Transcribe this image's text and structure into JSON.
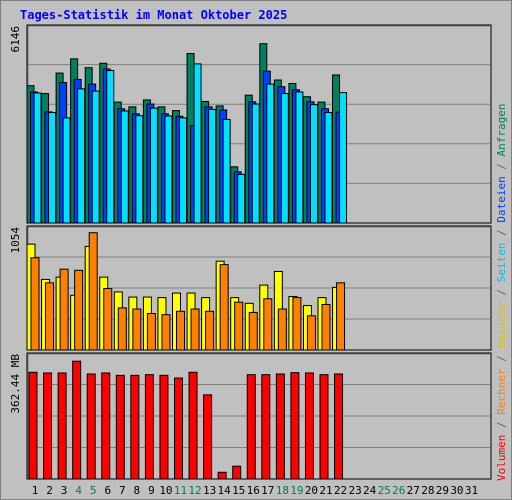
{
  "title": "Tages-Statistik im Monat Oktober 2025",
  "colors": {
    "anfragen": "#008060",
    "dateien": "#0040ff",
    "seiten": "#00e0ff",
    "besuche": "#ffff00",
    "rechner": "#ff8000",
    "volumen": "#ff0000",
    "weekend_label": "#008040",
    "text": "#000000"
  },
  "legend": [
    {
      "label": "Volumen",
      "color": "#ff0000"
    },
    {
      "label": "Rechner",
      "color": "#ff8000"
    },
    {
      "label": "Besuche",
      "color": "#e0c000"
    },
    {
      "label": "Seiten",
      "color": "#00c0e0"
    },
    {
      "label": "Dateien",
      "color": "#0040ff"
    },
    {
      "label": "Anfragen",
      "color": "#008060"
    }
  ],
  "legend_separator": " / ",
  "chart_data": [
    {
      "type": "bar",
      "name": "hits-files-pages",
      "max_label": "6146",
      "ylim": [
        0,
        6146
      ],
      "categories": [
        "1",
        "2",
        "3",
        "4",
        "5",
        "6",
        "7",
        "8",
        "9",
        "10",
        "11",
        "12",
        "13",
        "14",
        "15",
        "16",
        "17",
        "18",
        "19",
        "20",
        "21",
        "22",
        "23",
        "24",
        "25",
        "26",
        "27",
        "28",
        "29",
        "30",
        "31"
      ],
      "weekend_days": [
        4,
        5,
        11,
        12,
        18,
        19,
        25,
        26
      ],
      "series": [
        {
          "name": "Anfragen",
          "key": "anfragen",
          "values": [
            4350,
            4100,
            4750,
            5200,
            4920,
            5060,
            3830,
            3680,
            3900,
            3680,
            3560,
            5370,
            3850,
            3710,
            1780,
            4050,
            5680,
            4530,
            4420,
            4000,
            3830,
            4690,
            0,
            0,
            0,
            0,
            0,
            0,
            0,
            0,
            0
          ]
        },
        {
          "name": "Dateien",
          "key": "dateien",
          "values": [
            4150,
            3520,
            4450,
            4550,
            4400,
            4880,
            3620,
            3460,
            3770,
            3460,
            3380,
            3080,
            3680,
            3580,
            1620,
            3840,
            4810,
            4320,
            4220,
            3840,
            3620,
            3510,
            0,
            0,
            0,
            0,
            0,
            0,
            0,
            0,
            0
          ]
        },
        {
          "name": "Seiten",
          "key": "seiten",
          "values": [
            4120,
            3500,
            3330,
            4250,
            4180,
            4830,
            3550,
            3400,
            3640,
            3390,
            3330,
            5040,
            3600,
            3280,
            1540,
            3770,
            4400,
            4100,
            4150,
            3750,
            3500,
            4130,
            0,
            0,
            0,
            0,
            0,
            0,
            0,
            0,
            0
          ]
        }
      ]
    },
    {
      "type": "bar",
      "name": "visits-hosts",
      "max_label": "1054",
      "ylim": [
        0,
        1054
      ],
      "series": [
        {
          "name": "Besuche",
          "key": "besuche",
          "values": [
            930,
            620,
            640,
            480,
            910,
            640,
            510,
            465,
            465,
            460,
            500,
            500,
            460,
            780,
            460,
            410,
            570,
            690,
            470,
            390,
            460,
            550,
            0,
            0,
            0,
            0,
            0,
            0,
            0,
            0,
            0
          ]
        },
        {
          "name": "Rechner",
          "key": "rechner",
          "values": [
            810,
            590,
            710,
            700,
            1030,
            540,
            370,
            360,
            320,
            310,
            340,
            360,
            340,
            750,
            420,
            330,
            450,
            360,
            460,
            300,
            400,
            590,
            0,
            0,
            0,
            0,
            0,
            0,
            0,
            0,
            0
          ]
        }
      ]
    },
    {
      "type": "bar",
      "name": "volume",
      "max_label": "362.44 MB",
      "ylim": [
        0,
        362.44
      ],
      "series": [
        {
          "name": "Volumen",
          "key": "volumen",
          "values": [
            317,
            315,
            315,
            350,
            312,
            315,
            308,
            308,
            310,
            308,
            300,
            317,
            250,
            20,
            38,
            310,
            310,
            312,
            316,
            315,
            310,
            312,
            0,
            0,
            0,
            0,
            0,
            0,
            0,
            0,
            0
          ]
        }
      ]
    }
  ]
}
